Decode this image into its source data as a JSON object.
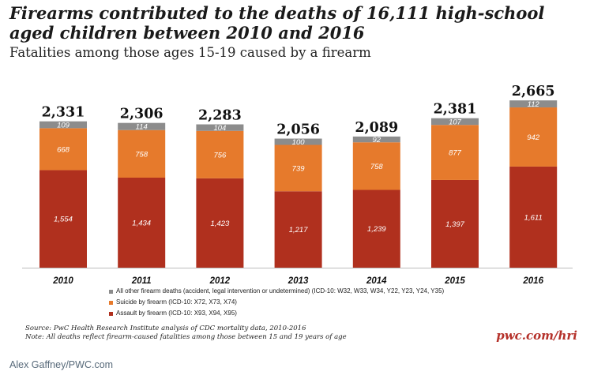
{
  "chart_data": {
    "type": "bar",
    "stacked": true,
    "title": "Firearms contributed to the deaths of 16,111 high-school aged children between 2010 and 2016",
    "subtitle": "Fatalities among those ages 15-19 caused by a firearm",
    "categories": [
      "2010",
      "2011",
      "2012",
      "2013",
      "2014",
      "2015",
      "2016"
    ],
    "totals": [
      "2,331",
      "2,306",
      "2,283",
      "2,056",
      "2,089",
      "2,381",
      "2,665"
    ],
    "series": [
      {
        "name": "Assault by firearm (ICD-10: X93, X94, X95)",
        "color": "#b0301e",
        "values": [
          1554,
          1434,
          1423,
          1217,
          1239,
          1397,
          1611
        ]
      },
      {
        "name": "Suicide by firearm (ICD-10: X72, X73, X74)",
        "color": "#e67a2c",
        "values": [
          668,
          758,
          756,
          739,
          758,
          877,
          942
        ]
      },
      {
        "name": "All other firearm deaths (accident, legal intervention or undetermined) (ICD-10: W32, W33, W34, Y22, Y23, Y24, Y35)",
        "color": "#8c8c8c",
        "values": [
          109,
          114,
          104,
          100,
          92,
          107,
          112
        ]
      }
    ],
    "legend_order": [
      2,
      1,
      0
    ],
    "xlabel": "",
    "ylabel": "",
    "ylim": [
      0,
      2665
    ]
  },
  "notes": {
    "source": "Source: PwC Health Research Institute analysis of CDC mortality data, 2010-2016",
    "note": "Note: All deaths reflect firearm-caused fatalities among those between 15 and 19 years of age"
  },
  "brand": "pwc.com/hri",
  "credit": "Alex Gaffney/PWC.com"
}
